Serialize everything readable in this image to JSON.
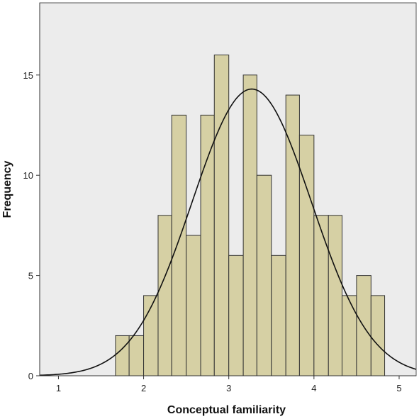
{
  "chart_data": {
    "type": "bar",
    "subtype": "histogram-with-normal-curve",
    "xlabel": "Conceptual familiarity",
    "ylabel": "Frequency",
    "xlim": [
      0.78,
      5.2
    ],
    "ylim": [
      0,
      18.6
    ],
    "x_ticks": [
      1,
      2,
      3,
      4,
      5
    ],
    "y_ticks": [
      0,
      5,
      10,
      15
    ],
    "bin_start": 1.67,
    "bin_width": 0.1667,
    "bins": [
      {
        "x0": 1.67,
        "x1": 1.83,
        "count": 2
      },
      {
        "x0": 1.83,
        "x1": 2.0,
        "count": 2
      },
      {
        "x0": 2.0,
        "x1": 2.17,
        "count": 4
      },
      {
        "x0": 2.17,
        "x1": 2.33,
        "count": 8
      },
      {
        "x0": 2.33,
        "x1": 2.5,
        "count": 13
      },
      {
        "x0": 2.5,
        "x1": 2.67,
        "count": 7
      },
      {
        "x0": 2.67,
        "x1": 2.83,
        "count": 13
      },
      {
        "x0": 2.83,
        "x1": 3.0,
        "count": 16
      },
      {
        "x0": 3.0,
        "x1": 3.17,
        "count": 6
      },
      {
        "x0": 3.17,
        "x1": 3.33,
        "count": 15
      },
      {
        "x0": 3.33,
        "x1": 3.5,
        "count": 10
      },
      {
        "x0": 3.5,
        "x1": 3.67,
        "count": 6
      },
      {
        "x0": 3.67,
        "x1": 3.83,
        "count": 14
      },
      {
        "x0": 3.83,
        "x1": 4.0,
        "count": 12
      },
      {
        "x0": 4.0,
        "x1": 4.17,
        "count": 8
      },
      {
        "x0": 4.17,
        "x1": 4.33,
        "count": 8
      },
      {
        "x0": 4.33,
        "x1": 4.5,
        "count": 4
      },
      {
        "x0": 4.5,
        "x1": 4.67,
        "count": 5
      },
      {
        "x0": 4.67,
        "x1": 4.83,
        "count": 4
      }
    ],
    "normal_curve": {
      "mean": 3.27,
      "sd": 0.7,
      "peak": 14.3
    },
    "grid": false,
    "legend": "none",
    "colors": {
      "bar_fill": "#d6d0a4",
      "bar_stroke": "#333333",
      "plot_bg": "#ececec",
      "curve": "#111111"
    }
  }
}
